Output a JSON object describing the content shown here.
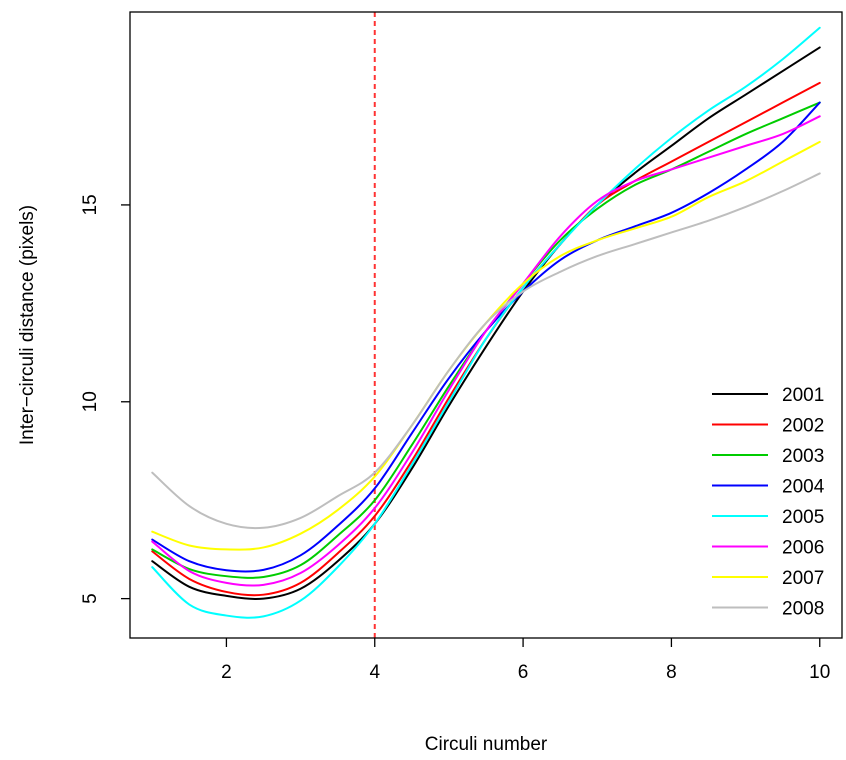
{
  "chart_data": {
    "type": "line",
    "title": "",
    "xlabel": "Circuli number",
    "ylabel": "Inter−circuli distance (pixels)",
    "xlim": [
      0.7,
      10.3
    ],
    "ylim": [
      4.0,
      19.9
    ],
    "x_ticks": [
      {
        "value": 2,
        "label": "2"
      },
      {
        "value": 4,
        "label": "4"
      },
      {
        "value": 6,
        "label": "6"
      },
      {
        "value": 8,
        "label": "8"
      },
      {
        "value": 10,
        "label": "10"
      }
    ],
    "y_ticks": [
      {
        "value": 5,
        "label": "5"
      },
      {
        "value": 10,
        "label": "10"
      },
      {
        "value": 15,
        "label": "15"
      }
    ],
    "grid": false,
    "legend_position": "bottom-right",
    "reference_line": {
      "x": 4,
      "style": "dashed",
      "color": "#ff3333"
    },
    "x": [
      1,
      1.5,
      2,
      2.5,
      3,
      3.5,
      4,
      4.5,
      5,
      5.5,
      6,
      6.5,
      7,
      7.5,
      8,
      8.5,
      9,
      9.5,
      10
    ],
    "series": [
      {
        "name": "2001",
        "color": "#000000",
        "values": [
          5.95,
          5.3,
          5.07,
          5.0,
          5.25,
          5.95,
          6.9,
          8.3,
          9.9,
          11.4,
          12.8,
          14.0,
          15.0,
          15.8,
          16.5,
          17.2,
          17.8,
          18.4,
          19.0
        ]
      },
      {
        "name": "2002",
        "color": "#ff0000",
        "values": [
          6.2,
          5.5,
          5.17,
          5.1,
          5.4,
          6.15,
          7.1,
          8.5,
          10.1,
          11.6,
          12.9,
          14.0,
          15.0,
          15.6,
          16.1,
          16.6,
          17.1,
          17.6,
          18.1
        ]
      },
      {
        "name": "2003",
        "color": "#00cc00",
        "values": [
          6.25,
          5.75,
          5.57,
          5.55,
          5.85,
          6.6,
          7.5,
          8.9,
          10.4,
          11.8,
          13.0,
          14.1,
          14.9,
          15.5,
          15.9,
          16.35,
          16.8,
          17.2,
          17.6
        ]
      },
      {
        "name": "2004",
        "color": "#0000ff",
        "values": [
          6.5,
          5.95,
          5.72,
          5.73,
          6.1,
          6.85,
          7.8,
          9.2,
          10.6,
          11.8,
          12.8,
          13.6,
          14.1,
          14.45,
          14.8,
          15.3,
          15.9,
          16.6,
          17.6
        ]
      },
      {
        "name": "2005",
        "color": "#00ffff",
        "values": [
          5.8,
          4.85,
          4.57,
          4.55,
          4.95,
          5.8,
          6.9,
          8.4,
          10.0,
          11.6,
          12.9,
          14.0,
          15.0,
          15.9,
          16.7,
          17.4,
          18.0,
          18.7,
          19.5
        ]
      },
      {
        "name": "2006",
        "color": "#ff00ff",
        "values": [
          6.45,
          5.7,
          5.4,
          5.35,
          5.65,
          6.35,
          7.3,
          8.7,
          10.3,
          11.8,
          13.0,
          14.2,
          15.1,
          15.6,
          15.9,
          16.2,
          16.5,
          16.8,
          17.25
        ]
      },
      {
        "name": "2007",
        "color": "#ffff00",
        "values": [
          6.7,
          6.35,
          6.25,
          6.3,
          6.65,
          7.25,
          8.1,
          9.4,
          10.8,
          12.0,
          13.0,
          13.7,
          14.1,
          14.4,
          14.7,
          15.2,
          15.6,
          16.1,
          16.6
        ]
      },
      {
        "name": "2008",
        "color": "#bebebe",
        "values": [
          8.2,
          7.35,
          6.9,
          6.8,
          7.05,
          7.6,
          8.2,
          9.4,
          10.8,
          12.0,
          12.8,
          13.3,
          13.7,
          14.0,
          14.3,
          14.6,
          14.95,
          15.35,
          15.8
        ]
      }
    ]
  }
}
